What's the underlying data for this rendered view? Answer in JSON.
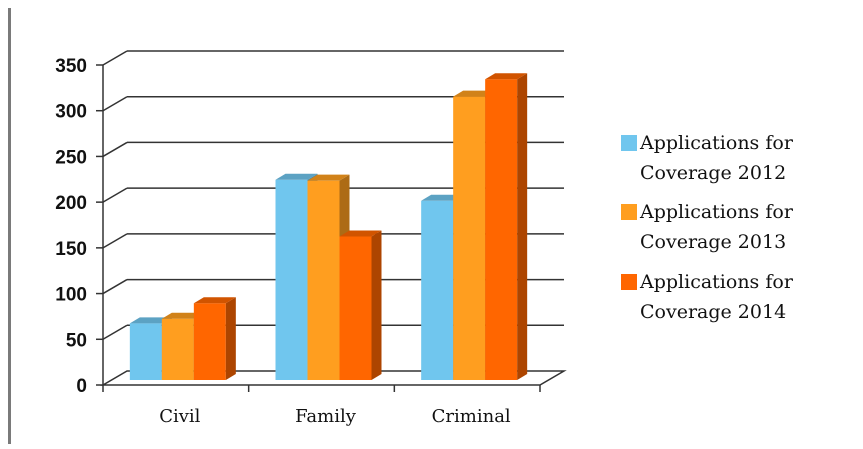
{
  "chart_data": {
    "type": "bar",
    "style": "3d-clustered-column",
    "categories": [
      "Civil",
      "Family",
      "Criminal"
    ],
    "series": [
      {
        "name": "Applications for Coverage 2012",
        "legend_lines": [
          "Applications for",
          "Coverage 2012"
        ],
        "color": "#70C6EE",
        "values": [
          62,
          219,
          196
        ]
      },
      {
        "name": "Applications for Coverage 2013",
        "legend_lines": [
          "Applications for",
          "Coverage 2013"
        ],
        "color": "#FF9E1F",
        "values": [
          67,
          218,
          310
        ]
      },
      {
        "name": "Applications for Coverage 2014",
        "legend_lines": [
          "Applications for",
          "Coverage 2014"
        ],
        "color": "#FF6600",
        "values": [
          84,
          157,
          329
        ]
      }
    ],
    "yticks": [
      0,
      50,
      100,
      150,
      200,
      250,
      300,
      350
    ],
    "ylim": [
      0,
      350
    ],
    "grid": true,
    "legend_position": "right"
  }
}
